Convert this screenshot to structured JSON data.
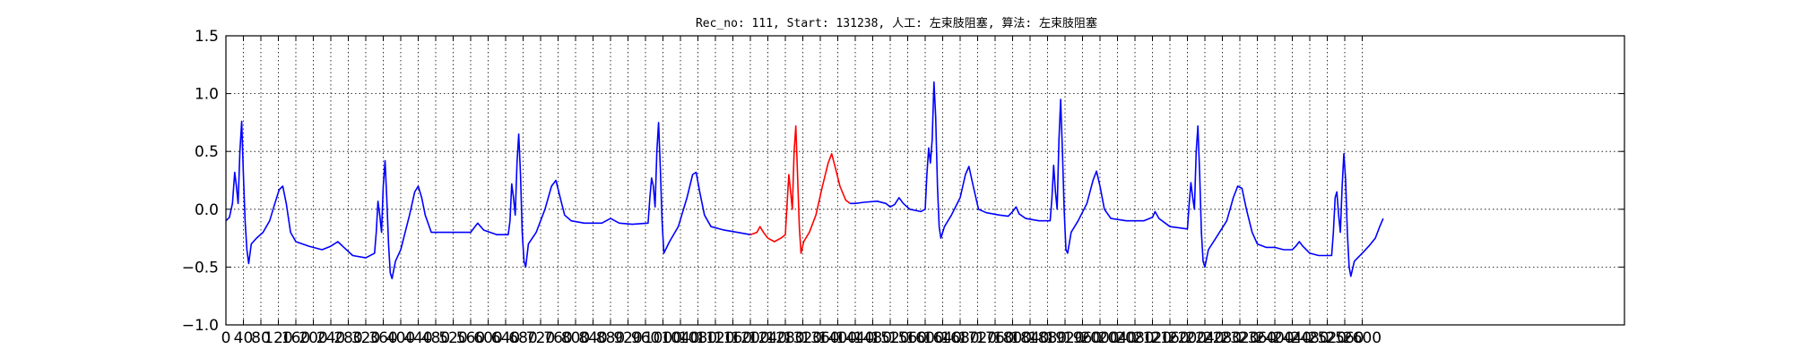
{
  "chart_data": {
    "type": "line",
    "title": "Rec_no: 111, Start: 131238, 人工: 左束肢阻塞, 算法: 左束肢阻塞",
    "xlabel": "",
    "ylabel": "",
    "xlim": [
      0,
      3200
    ],
    "ylim": [
      -1.0,
      1.5
    ],
    "grid": true,
    "grid_style": "dotted",
    "x_ticks": [
      0,
      40,
      80,
      120,
      160,
      200,
      240,
      280,
      320,
      360,
      400,
      440,
      480,
      520,
      560,
      600,
      640,
      680,
      720,
      760,
      800,
      840,
      880,
      920,
      960,
      1000,
      1040,
      1080,
      1120,
      1160,
      1200,
      1240,
      1280,
      1320,
      1360,
      1400,
      1440,
      1480,
      1520,
      1560,
      1600,
      1640,
      1680,
      1720,
      1760,
      1800,
      1840,
      1880,
      1920,
      1960,
      2000,
      2040,
      2080,
      2120,
      2160,
      2200,
      2240,
      2280,
      2320,
      2360,
      2400,
      2440,
      2480,
      2520,
      2560,
      2600
    ],
    "y_ticks": [
      -1.0,
      -0.5,
      0.0,
      0.5,
      1.0,
      1.5
    ],
    "y_tick_labels": [
      "−1.0",
      "−0.5",
      "0.0",
      "0.5",
      "1.0",
      "1.5"
    ],
    "series": [
      {
        "color": "#0000ff",
        "points": [
          [
            0,
            -0.1
          ],
          [
            8,
            -0.07
          ],
          [
            15,
            0.05
          ],
          [
            20,
            0.32
          ],
          [
            24,
            0.2
          ],
          [
            28,
            0.05
          ],
          [
            32,
            0.5
          ],
          [
            36,
            0.76
          ],
          [
            40,
            0.3
          ],
          [
            44,
            -0.1
          ],
          [
            48,
            -0.35
          ],
          [
            52,
            -0.47
          ],
          [
            58,
            -0.3
          ],
          [
            70,
            -0.25
          ],
          [
            85,
            -0.2
          ],
          [
            100,
            -0.1
          ],
          [
            112,
            0.05
          ],
          [
            122,
            0.17
          ],
          [
            130,
            0.2
          ],
          [
            138,
            0.05
          ],
          [
            148,
            -0.2
          ],
          [
            160,
            -0.28
          ],
          [
            190,
            -0.32
          ],
          [
            220,
            -0.35
          ],
          [
            240,
            -0.32
          ],
          [
            256,
            -0.28
          ],
          [
            270,
            -0.33
          ],
          [
            290,
            -0.4
          ],
          [
            320,
            -0.42
          ],
          [
            340,
            -0.38
          ],
          [
            344,
            -0.2
          ],
          [
            348,
            0.07
          ],
          [
            352,
            -0.05
          ],
          [
            356,
            -0.2
          ],
          [
            360,
            0.2
          ],
          [
            364,
            0.42
          ],
          [
            368,
            0.1
          ],
          [
            372,
            -0.3
          ],
          [
            376,
            -0.55
          ],
          [
            380,
            -0.6
          ],
          [
            388,
            -0.45
          ],
          [
            400,
            -0.35
          ],
          [
            420,
            -0.05
          ],
          [
            432,
            0.15
          ],
          [
            440,
            0.2
          ],
          [
            448,
            0.1
          ],
          [
            456,
            -0.05
          ],
          [
            470,
            -0.2
          ],
          [
            490,
            -0.2
          ],
          [
            520,
            -0.2
          ],
          [
            560,
            -0.2
          ],
          [
            576,
            -0.12
          ],
          [
            590,
            -0.18
          ],
          [
            620,
            -0.22
          ],
          [
            646,
            -0.22
          ],
          [
            650,
            -0.1
          ],
          [
            654,
            0.22
          ],
          [
            658,
            0.1
          ],
          [
            662,
            -0.05
          ],
          [
            666,
            0.4
          ],
          [
            670,
            0.65
          ],
          [
            674,
            0.3
          ],
          [
            678,
            -0.2
          ],
          [
            682,
            -0.45
          ],
          [
            686,
            -0.5
          ],
          [
            692,
            -0.3
          ],
          [
            710,
            -0.2
          ],
          [
            730,
            0.0
          ],
          [
            745,
            0.2
          ],
          [
            755,
            0.25
          ],
          [
            765,
            0.1
          ],
          [
            775,
            -0.05
          ],
          [
            790,
            -0.1
          ],
          [
            820,
            -0.12
          ],
          [
            860,
            -0.12
          ],
          [
            880,
            -0.08
          ],
          [
            900,
            -0.12
          ],
          [
            930,
            -0.13
          ],
          [
            966,
            -0.12
          ],
          [
            970,
            0.1
          ],
          [
            974,
            0.27
          ],
          [
            978,
            0.2
          ],
          [
            982,
            0.02
          ],
          [
            986,
            0.5
          ],
          [
            990,
            0.75
          ],
          [
            994,
            0.35
          ],
          [
            998,
            -0.1
          ],
          [
            1002,
            -0.38
          ],
          [
            1006,
            -0.35
          ],
          [
            1015,
            -0.28
          ],
          [
            1035,
            -0.15
          ],
          [
            1055,
            0.1
          ],
          [
            1068,
            0.3
          ],
          [
            1076,
            0.32
          ],
          [
            1084,
            0.15
          ],
          [
            1095,
            -0.05
          ],
          [
            1110,
            -0.15
          ],
          [
            1140,
            -0.18
          ],
          [
            1170,
            -0.2
          ],
          [
            1200,
            -0.22
          ]
        ]
      },
      {
        "color": "#ff0000",
        "points": [
          [
            1200,
            -0.22
          ],
          [
            1215,
            -0.2
          ],
          [
            1222,
            -0.15
          ],
          [
            1230,
            -0.2
          ],
          [
            1240,
            -0.25
          ],
          [
            1255,
            -0.28
          ],
          [
            1270,
            -0.25
          ],
          [
            1280,
            -0.22
          ],
          [
            1284,
            0.05
          ],
          [
            1288,
            0.3
          ],
          [
            1292,
            0.15
          ],
          [
            1296,
            0.0
          ],
          [
            1300,
            0.5
          ],
          [
            1304,
            0.72
          ],
          [
            1308,
            0.3
          ],
          [
            1312,
            -0.15
          ],
          [
            1316,
            -0.38
          ],
          [
            1322,
            -0.28
          ],
          [
            1335,
            -0.2
          ],
          [
            1350,
            -0.05
          ],
          [
            1365,
            0.2
          ],
          [
            1378,
            0.4
          ],
          [
            1386,
            0.48
          ],
          [
            1395,
            0.35
          ],
          [
            1405,
            0.2
          ],
          [
            1418,
            0.08
          ],
          [
            1428,
            0.05
          ]
        ]
      },
      {
        "color": "#0000ff",
        "points": [
          [
            1428,
            0.05
          ],
          [
            1440,
            0.05
          ],
          [
            1460,
            0.06
          ],
          [
            1490,
            0.07
          ],
          [
            1510,
            0.05
          ],
          [
            1520,
            0.02
          ],
          [
            1530,
            0.04
          ],
          [
            1540,
            0.1
          ],
          [
            1550,
            0.05
          ],
          [
            1565,
            0.0
          ],
          [
            1590,
            -0.02
          ],
          [
            1600,
            0.0
          ],
          [
            1604,
            0.3
          ],
          [
            1608,
            0.53
          ],
          [
            1612,
            0.4
          ],
          [
            1616,
            0.6
          ],
          [
            1620,
            1.1
          ],
          [
            1624,
            0.8
          ],
          [
            1628,
            0.2
          ],
          [
            1632,
            -0.15
          ],
          [
            1636,
            -0.25
          ],
          [
            1644,
            -0.15
          ],
          [
            1660,
            -0.05
          ],
          [
            1680,
            0.1
          ],
          [
            1692,
            0.3
          ],
          [
            1700,
            0.37
          ],
          [
            1710,
            0.2
          ],
          [
            1722,
            0.0
          ],
          [
            1740,
            -0.03
          ],
          [
            1770,
            -0.05
          ],
          [
            1790,
            -0.06
          ],
          [
            1800,
            -0.02
          ],
          [
            1808,
            0.02
          ],
          [
            1815,
            -0.04
          ],
          [
            1830,
            -0.08
          ],
          [
            1860,
            -0.1
          ],
          [
            1886,
            -0.1
          ],
          [
            1890,
            0.1
          ],
          [
            1894,
            0.38
          ],
          [
            1898,
            0.15
          ],
          [
            1902,
            0.0
          ],
          [
            1906,
            0.6
          ],
          [
            1910,
            0.95
          ],
          [
            1914,
            0.5
          ],
          [
            1918,
            0.0
          ],
          [
            1922,
            -0.35
          ],
          [
            1926,
            -0.38
          ],
          [
            1934,
            -0.2
          ],
          [
            1950,
            -0.1
          ],
          [
            1970,
            0.05
          ],
          [
            1984,
            0.25
          ],
          [
            1992,
            0.33
          ],
          [
            2000,
            0.2
          ],
          [
            2010,
            0.0
          ],
          [
            2025,
            -0.08
          ],
          [
            2060,
            -0.1
          ],
          [
            2100,
            -0.1
          ],
          [
            2120,
            -0.07
          ],
          [
            2126,
            -0.02
          ],
          [
            2135,
            -0.08
          ],
          [
            2160,
            -0.15
          ],
          [
            2200,
            -0.17
          ],
          [
            2204,
            0.05
          ],
          [
            2208,
            0.23
          ],
          [
            2212,
            0.1
          ],
          [
            2216,
            0.0
          ],
          [
            2220,
            0.5
          ],
          [
            2224,
            0.72
          ],
          [
            2228,
            0.3
          ],
          [
            2232,
            -0.2
          ],
          [
            2236,
            -0.45
          ],
          [
            2240,
            -0.5
          ],
          [
            2248,
            -0.35
          ],
          [
            2265,
            -0.25
          ],
          [
            2290,
            -0.1
          ],
          [
            2305,
            0.1
          ],
          [
            2315,
            0.2
          ],
          [
            2325,
            0.18
          ],
          [
            2335,
            0.0
          ],
          [
            2348,
            -0.2
          ],
          [
            2360,
            -0.3
          ],
          [
            2380,
            -0.33
          ],
          [
            2400,
            -0.33
          ],
          [
            2420,
            -0.35
          ],
          [
            2440,
            -0.35
          ],
          [
            2448,
            -0.32
          ],
          [
            2456,
            -0.28
          ],
          [
            2464,
            -0.32
          ],
          [
            2480,
            -0.38
          ],
          [
            2500,
            -0.4
          ],
          [
            2530,
            -0.4
          ],
          [
            2534,
            -0.2
          ],
          [
            2538,
            0.1
          ],
          [
            2542,
            0.15
          ],
          [
            2546,
            -0.05
          ],
          [
            2550,
            -0.2
          ],
          [
            2554,
            0.2
          ],
          [
            2558,
            0.48
          ],
          [
            2562,
            0.25
          ],
          [
            2566,
            -0.2
          ],
          [
            2570,
            -0.5
          ],
          [
            2574,
            -0.58
          ],
          [
            2582,
            -0.45
          ],
          [
            2600,
            -0.38
          ],
          [
            2615,
            -0.32
          ],
          [
            2630,
            -0.25
          ],
          [
            2640,
            -0.15
          ],
          [
            2648,
            -0.08
          ]
        ]
      }
    ]
  }
}
